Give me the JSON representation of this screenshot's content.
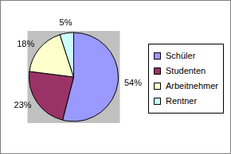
{
  "chart_data": {
    "type": "pie",
    "categories": [
      "Schüler",
      "Studenten",
      "Arbeitnehmer",
      "Rentner"
    ],
    "values": [
      54,
      23,
      18,
      5
    ],
    "value_labels": [
      "54%",
      "23%",
      "18%",
      "5%"
    ],
    "colors": [
      "#9999ff",
      "#993366",
      "#ffffcc",
      "#ccffff"
    ],
    "legend": "right",
    "data_labels": true
  }
}
